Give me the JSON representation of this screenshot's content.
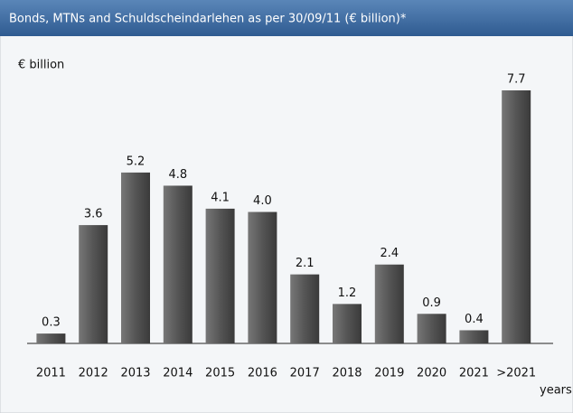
{
  "chart_data": {
    "type": "bar",
    "title": "Bonds, MTNs and Schuldscheindarlehen as per 30/09/11 (€ billion)*",
    "y_label": "€ billion",
    "x_label": "years",
    "categories": [
      "2011",
      "2012",
      "2013",
      "2014",
      "2015",
      "2016",
      "2017",
      "2018",
      "2019",
      "2020",
      "2021",
      ">2021"
    ],
    "values": [
      0.3,
      3.6,
      5.2,
      4.8,
      4.1,
      4.0,
      2.1,
      1.2,
      2.4,
      0.9,
      0.4,
      7.7
    ],
    "value_labels": [
      "0.3",
      "3.6",
      "5.2",
      "4.8",
      "4.1",
      "4.0",
      "2.1",
      "1.2",
      "2.4",
      "0.9",
      "0.4",
      "7.7"
    ],
    "color": "#5a5a5a"
  }
}
